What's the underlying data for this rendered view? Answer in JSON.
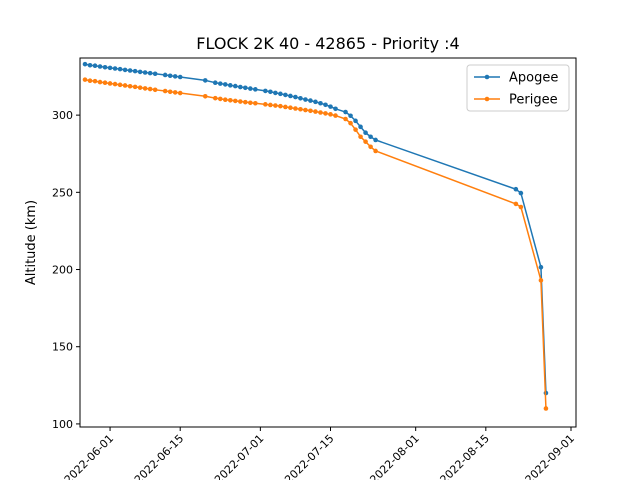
{
  "chart_data": {
    "type": "line",
    "title": "FLOCK 2K 40 - 42865 - Priority :4",
    "xlabel": "",
    "ylabel": "Altitude (km)",
    "x_axis_type": "date",
    "xlim": [
      "2022-05-26",
      "2022-09-02"
    ],
    "ylim": [
      98,
      337
    ],
    "x_ticks": [
      "2022-06-01",
      "2022-06-15",
      "2022-07-01",
      "2022-07-15",
      "2022-08-01",
      "2022-08-15",
      "2022-09-01"
    ],
    "y_ticks": [
      100,
      150,
      200,
      250,
      300
    ],
    "grid": false,
    "legend_position": "top-right",
    "marker": "circle",
    "series": [
      {
        "name": "Apogee",
        "color": "#1f77b4",
        "points": [
          [
            "2022-05-27",
            333.0
          ],
          [
            "2022-05-28",
            332.3
          ],
          [
            "2022-05-29",
            332.0
          ],
          [
            "2022-05-30",
            331.5
          ],
          [
            "2022-05-31",
            331.0
          ],
          [
            "2022-06-01",
            330.6
          ],
          [
            "2022-06-02",
            330.2
          ],
          [
            "2022-06-03",
            329.8
          ],
          [
            "2022-06-04",
            329.3
          ],
          [
            "2022-06-05",
            328.9
          ],
          [
            "2022-06-06",
            328.5
          ],
          [
            "2022-06-07",
            328.0
          ],
          [
            "2022-06-08",
            327.6
          ],
          [
            "2022-06-09",
            327.2
          ],
          [
            "2022-06-10",
            326.8
          ],
          [
            "2022-06-12",
            326.0
          ],
          [
            "2022-06-13",
            325.5
          ],
          [
            "2022-06-14",
            325.1
          ],
          [
            "2022-06-15",
            324.7
          ],
          [
            "2022-06-20",
            322.5
          ],
          [
            "2022-06-22",
            321.0
          ],
          [
            "2022-06-23",
            320.4
          ],
          [
            "2022-06-24",
            319.9
          ],
          [
            "2022-06-25",
            319.3
          ],
          [
            "2022-06-26",
            318.8
          ],
          [
            "2022-06-27",
            318.2
          ],
          [
            "2022-06-28",
            317.7
          ],
          [
            "2022-06-29",
            317.2
          ],
          [
            "2022-06-30",
            316.7
          ],
          [
            "2022-07-02",
            315.7
          ],
          [
            "2022-07-03",
            315.1
          ],
          [
            "2022-07-04",
            314.4
          ],
          [
            "2022-07-05",
            313.8
          ],
          [
            "2022-07-06",
            313.1
          ],
          [
            "2022-07-07",
            312.4
          ],
          [
            "2022-07-08",
            311.7
          ],
          [
            "2022-07-09",
            310.9
          ],
          [
            "2022-07-10",
            310.1
          ],
          [
            "2022-07-11",
            309.4
          ],
          [
            "2022-07-12",
            308.6
          ],
          [
            "2022-07-13",
            307.7
          ],
          [
            "2022-07-14",
            306.7
          ],
          [
            "2022-07-15",
            305.5
          ],
          [
            "2022-07-16",
            304.1
          ],
          [
            "2022-07-18",
            302.0
          ],
          [
            "2022-07-19",
            299.6
          ],
          [
            "2022-07-20",
            296.3
          ],
          [
            "2022-07-21",
            292.4
          ],
          [
            "2022-07-22",
            288.6
          ],
          [
            "2022-07-23",
            286.0
          ],
          [
            "2022-07-24",
            283.9
          ],
          [
            "2022-08-21",
            252.0
          ],
          [
            "2022-08-22",
            249.5
          ],
          [
            "2022-08-26",
            201.5
          ],
          [
            "2022-08-27",
            120.0
          ]
        ]
      },
      {
        "name": "Perigee",
        "color": "#ff7f0e",
        "points": [
          [
            "2022-05-27",
            323.0
          ],
          [
            "2022-05-28",
            322.3
          ],
          [
            "2022-05-29",
            322.0
          ],
          [
            "2022-05-30",
            321.4
          ],
          [
            "2022-05-31",
            321.0
          ],
          [
            "2022-06-01",
            320.5
          ],
          [
            "2022-06-02",
            320.1
          ],
          [
            "2022-06-03",
            319.6
          ],
          [
            "2022-06-04",
            319.2
          ],
          [
            "2022-06-05",
            318.7
          ],
          [
            "2022-06-06",
            318.3
          ],
          [
            "2022-06-07",
            317.8
          ],
          [
            "2022-06-08",
            317.3
          ],
          [
            "2022-06-09",
            316.9
          ],
          [
            "2022-06-10",
            316.4
          ],
          [
            "2022-06-12",
            315.6
          ],
          [
            "2022-06-13",
            315.1
          ],
          [
            "2022-06-14",
            314.7
          ],
          [
            "2022-06-15",
            314.3
          ],
          [
            "2022-06-20",
            312.2
          ],
          [
            "2022-06-22",
            311.0
          ],
          [
            "2022-06-23",
            310.5
          ],
          [
            "2022-06-24",
            310.0
          ],
          [
            "2022-06-25",
            309.6
          ],
          [
            "2022-06-26",
            309.2
          ],
          [
            "2022-06-27",
            308.8
          ],
          [
            "2022-06-28",
            308.4
          ],
          [
            "2022-06-29",
            308.0
          ],
          [
            "2022-06-30",
            307.7
          ],
          [
            "2022-07-02",
            307.0
          ],
          [
            "2022-07-03",
            306.6
          ],
          [
            "2022-07-04",
            306.2
          ],
          [
            "2022-07-05",
            305.8
          ],
          [
            "2022-07-06",
            305.3
          ],
          [
            "2022-07-07",
            304.8
          ],
          [
            "2022-07-08",
            304.3
          ],
          [
            "2022-07-09",
            303.8
          ],
          [
            "2022-07-10",
            303.3
          ],
          [
            "2022-07-11",
            302.8
          ],
          [
            "2022-07-12",
            302.3
          ],
          [
            "2022-07-13",
            301.7
          ],
          [
            "2022-07-14",
            301.1
          ],
          [
            "2022-07-15",
            300.5
          ],
          [
            "2022-07-16",
            299.7
          ],
          [
            "2022-07-18",
            297.5
          ],
          [
            "2022-07-19",
            294.8
          ],
          [
            "2022-07-20",
            290.6
          ],
          [
            "2022-07-21",
            286.0
          ],
          [
            "2022-07-22",
            282.8
          ],
          [
            "2022-07-23",
            279.5
          ],
          [
            "2022-07-24",
            276.8
          ],
          [
            "2022-08-21",
            242.5
          ],
          [
            "2022-08-22",
            240.5
          ],
          [
            "2022-08-26",
            193.0
          ],
          [
            "2022-08-27",
            110.0
          ]
        ]
      }
    ]
  }
}
